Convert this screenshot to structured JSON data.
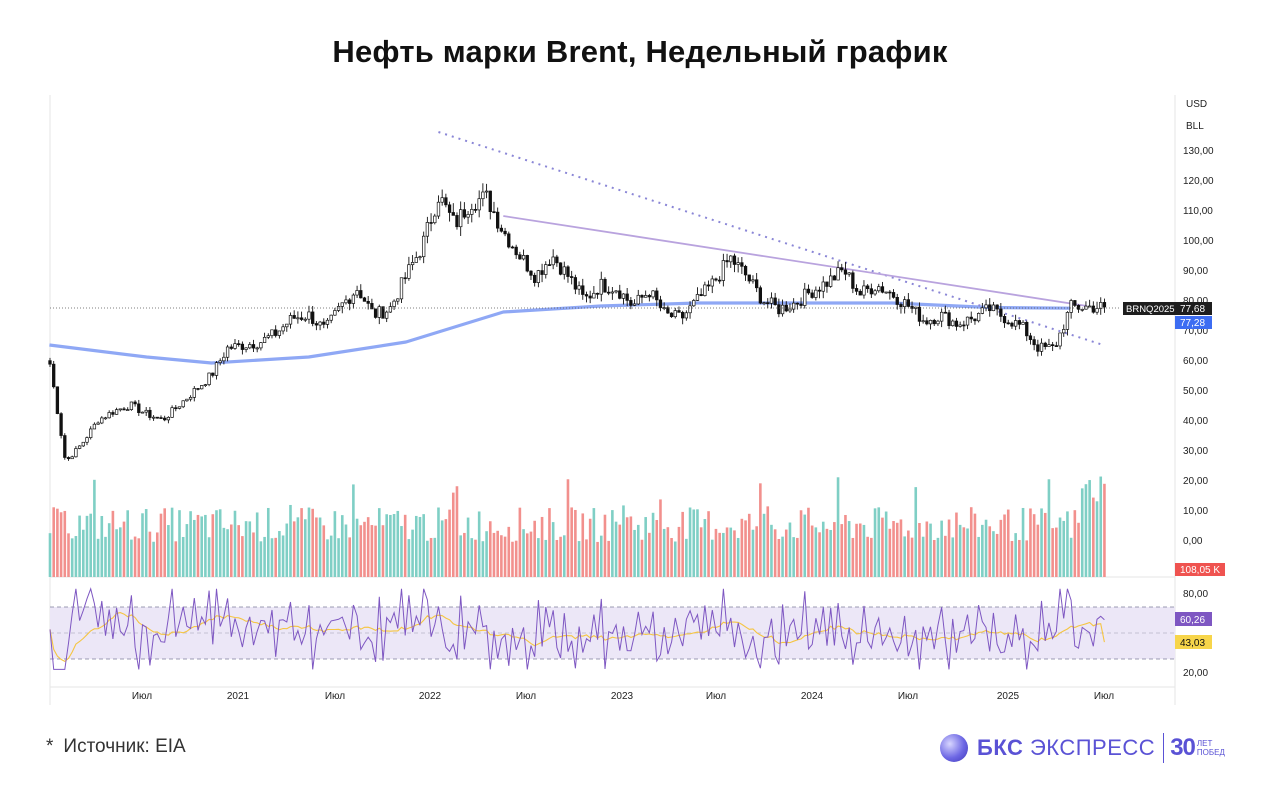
{
  "title": "Нефть марки Brent, Недельный график",
  "source_note": "Источник: EIA",
  "source_star": "*",
  "logo": {
    "brand_bold": "БКС",
    "brand_rest": "ЭКСПРЕСС",
    "anniversary_number": "30",
    "anniversary_line1": "ЛЕТ",
    "anniversary_line2": "ПОБЕД"
  },
  "colors": {
    "up": "#26a69a",
    "down": "#ef5350",
    "candle": "#111111",
    "ma": "#8fa8f5",
    "trend": "#b9a3de",
    "rsi": "#7e57c2",
    "rsi_ma": "#f5c542"
  },
  "price_scale": {
    "currency": "USD",
    "unit": "BLL"
  },
  "x_axis_labels": [
    "Июл",
    "2021",
    "Июл",
    "2022",
    "Июл",
    "2023",
    "Июл",
    "2024",
    "Июл",
    "2025",
    "Июл"
  ],
  "price_ticks": [
    "130,00",
    "120,00",
    "110,00",
    "100,00",
    "90,00",
    "80,00",
    "70,00",
    "60,00",
    "50,00",
    "40,00",
    "30,00",
    "20,00",
    "10,00",
    "0,00"
  ],
  "rsi_ticks": [
    "80,00",
    "20,00"
  ],
  "badges": {
    "ticker": "BRNQ2025",
    "last_price": "77,68",
    "ma_value": "77,28",
    "volume": "108,05 K",
    "rsi": "60,26",
    "rsi_ma": "43,03"
  },
  "chart_data": {
    "type": "line",
    "subtype": "weekly candlestick with volume and RSI",
    "ylim": [
      15,
      140
    ],
    "x_range": [
      "2020-03",
      "2025-08"
    ],
    "price_series": {
      "name": "BRNQ2025",
      "x": [
        "2020-03",
        "2020-04",
        "2020-05",
        "2020-06",
        "2020-07",
        "2020-08",
        "2020-09",
        "2020-10",
        "2020-11",
        "2020-12",
        "2021-01",
        "2021-02",
        "2021-03",
        "2021-04",
        "2021-05",
        "2021-06",
        "2021-07",
        "2021-08",
        "2021-09",
        "2021-10",
        "2021-11",
        "2021-12",
        "2022-01",
        "2022-02",
        "2022-03",
        "2022-04",
        "2022-05",
        "2022-06",
        "2022-07",
        "2022-08",
        "2022-09",
        "2022-10",
        "2022-11",
        "2022-12",
        "2023-01",
        "2023-02",
        "2023-03",
        "2023-04",
        "2023-05",
        "2023-06",
        "2023-07",
        "2023-08",
        "2023-09",
        "2023-10",
        "2023-11",
        "2023-12",
        "2024-01",
        "2024-02",
        "2024-03",
        "2024-04",
        "2024-05",
        "2024-06",
        "2024-07",
        "2024-08",
        "2024-09",
        "2024-10",
        "2024-11",
        "2024-12",
        "2025-01",
        "2025-02",
        "2025-03",
        "2025-04",
        "2025-05",
        "2025-06"
      ],
      "close": [
        60,
        26,
        32,
        40,
        43,
        45,
        42,
        40,
        45,
        50,
        55,
        64,
        65,
        66,
        69,
        74,
        75,
        70,
        78,
        84,
        75,
        77,
        88,
        98,
        115,
        105,
        113,
        114,
        103,
        95,
        88,
        95,
        88,
        80,
        85,
        84,
        78,
        83,
        75,
        74,
        80,
        86,
        94,
        88,
        80,
        77,
        79,
        83,
        86,
        90,
        82,
        85,
        82,
        78,
        73,
        75,
        72,
        74,
        77,
        74,
        71,
        64,
        64,
        77.68
      ]
    },
    "moving_average_200": {
      "name": "MA",
      "x": [
        "2020-03",
        "2020-09",
        "2021-01",
        "2021-07",
        "2022-01",
        "2022-07",
        "2023-01",
        "2023-07",
        "2024-01",
        "2024-07",
        "2025-01",
        "2025-06"
      ],
      "values": [
        65,
        61,
        59,
        61,
        66,
        76,
        78,
        79,
        79,
        79,
        77.5,
        77.28
      ]
    },
    "trendlines": [
      {
        "name": "dotted",
        "from": [
          "2022-03",
          136
        ],
        "to": [
          "2025-08",
          65
        ]
      },
      {
        "name": "solid",
        "from": [
          "2022-07",
          108
        ],
        "to": [
          "2025-07",
          78
        ]
      }
    ],
    "rsi": {
      "last": 60.26,
      "ma_last": 43.03,
      "overbought": 70,
      "oversold": 30
    }
  }
}
